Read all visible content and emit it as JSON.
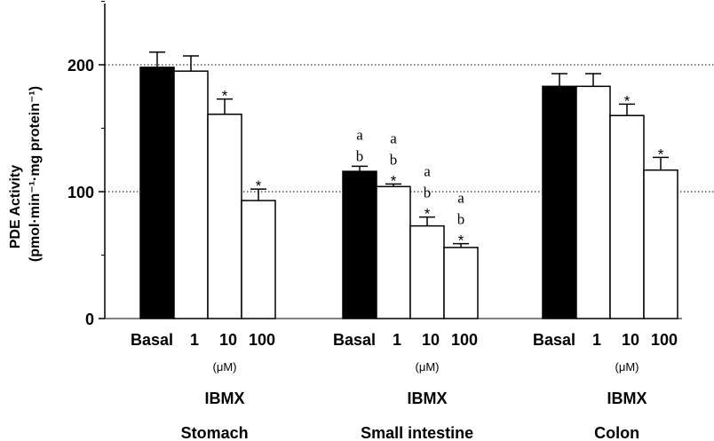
{
  "chart_data": {
    "type": "bar",
    "ylabel_line1": "PDE Activity",
    "ylabel_line2": "(pmol·min⁻¹·mg protein⁻¹)",
    "ylim": [
      0,
      250
    ],
    "yticks": [
      0,
      100,
      200
    ],
    "reference_lines": [
      100,
      200
    ],
    "concentration_unit": "(μM)",
    "treatment_label": "IBMX",
    "groups": [
      {
        "name": "Stomach",
        "categories": [
          "Basal",
          "1",
          "10",
          "100"
        ],
        "values": [
          198,
          195,
          161,
          93
        ],
        "errors": [
          12,
          12,
          12,
          9
        ],
        "fill": [
          "black",
          "white",
          "white",
          "white"
        ],
        "annotations": [
          [],
          [],
          [
            "*"
          ],
          [
            "*"
          ]
        ]
      },
      {
        "name": "Small intestine",
        "categories": [
          "Basal",
          "1",
          "10",
          "100"
        ],
        "values": [
          116,
          104,
          73,
          56
        ],
        "errors": [
          4,
          2,
          7,
          3
        ],
        "fill": [
          "black",
          "white",
          "white",
          "white"
        ],
        "annotations": [
          [
            "a",
            "b"
          ],
          [
            "a",
            "b",
            "*"
          ],
          [
            "a",
            "b",
            "*"
          ],
          [
            "a",
            "b",
            "*"
          ]
        ]
      },
      {
        "name": "Colon",
        "categories": [
          "Basal",
          "1",
          "10",
          "100"
        ],
        "values": [
          183,
          183,
          160,
          117
        ],
        "errors": [
          10,
          10,
          9,
          10
        ],
        "fill": [
          "black",
          "white",
          "white",
          "white"
        ],
        "annotations": [
          [],
          [],
          [
            "*"
          ],
          [
            "*"
          ]
        ]
      }
    ]
  }
}
